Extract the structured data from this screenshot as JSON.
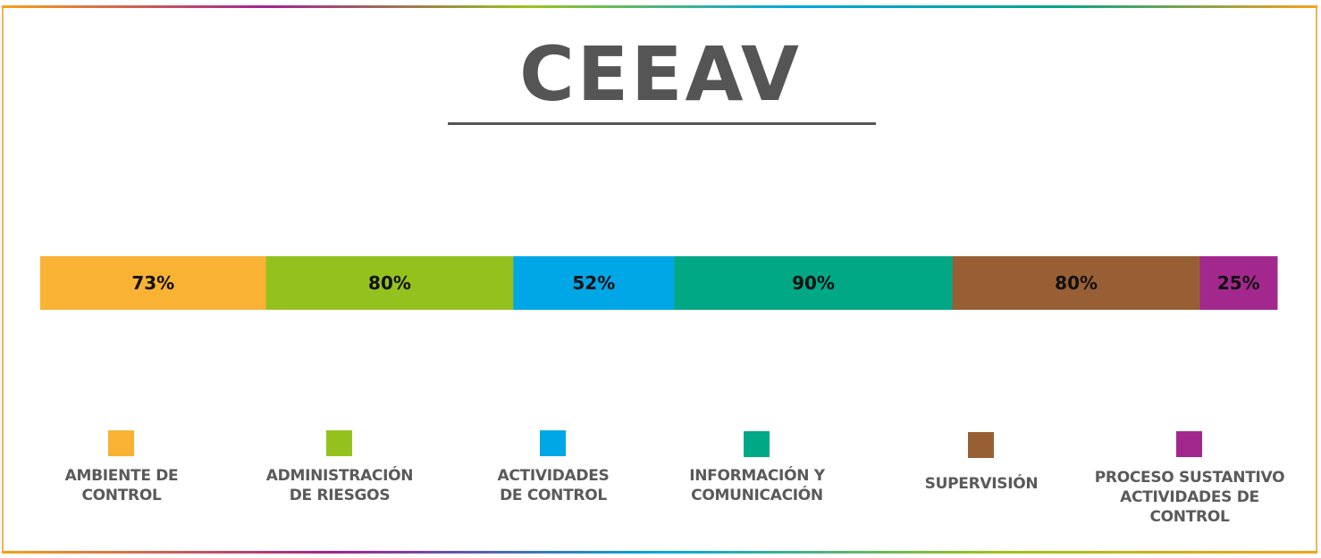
{
  "title": "CEEAV",
  "chart_data": {
    "type": "bar",
    "orientation": "horizontal-stacked",
    "categories": [
      "AMBIENTE DE CONTROL",
      "ADMINISTRACIÓN DE RIESGOS",
      "ACTIVIDADES DE CONTROL",
      "INFORMACIÓN Y COMUNICACIÓN",
      "SUPERVISIÓN",
      "PROCESO SUSTANTIVO ACTIVIDADES DE CONTROL"
    ],
    "values": [
      73,
      80,
      52,
      90,
      80,
      25
    ],
    "data_labels": [
      "73%",
      "80%",
      "52%",
      "90%",
      "80%",
      "25%"
    ],
    "colors": [
      "#f9b233",
      "#95c11f",
      "#00a7e6",
      "#00a886",
      "#985f35",
      "#a3288e"
    ],
    "legend": {
      "placement": "bottom",
      "items": [
        {
          "line1": "AMBIENTE DE",
          "line2": "CONTROL",
          "line3": ""
        },
        {
          "line1": "ADMINISTRACIÓN",
          "line2": "DE RIESGOS",
          "line3": ""
        },
        {
          "line1": "ACTIVIDADES",
          "line2": "DE CONTROL",
          "line3": ""
        },
        {
          "line1": "INFORMACIÓN Y",
          "line2": "COMUNICACIÓN",
          "line3": ""
        },
        {
          "line1": "SUPERVISIÓN",
          "line2": "",
          "line3": ""
        },
        {
          "line1": "PROCESO SUSTANTIVO",
          "line2": "ACTIVIDADES DE",
          "line3": "CONTROL"
        }
      ]
    },
    "grid": false
  }
}
